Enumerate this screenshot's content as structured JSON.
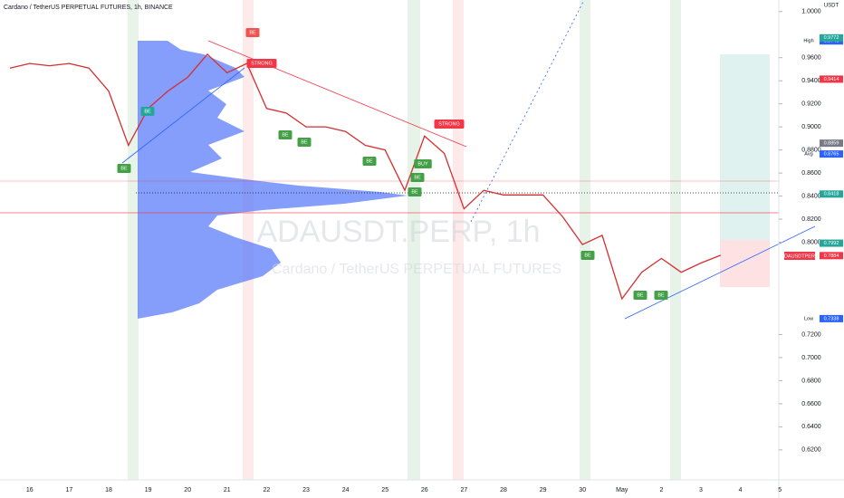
{
  "chart_data": {
    "type": "line",
    "title": "Cardano / TetherUS PERPETUAL FUTURES, 1h, BINANCE",
    "watermark": "ADAUSDT.PERP, 1h",
    "watermark_subtitle": "Cardano / TetherUS PERPETUAL FUTURES",
    "currency": "USDT",
    "symbol": "ADAUSDTPERP",
    "categories": [
      null,
      "16",
      null,
      "17",
      null,
      "18",
      null,
      "19",
      null,
      "20",
      null,
      "21",
      null,
      "22",
      null,
      "23",
      null,
      "24",
      null,
      "25",
      null,
      "26",
      null,
      "27",
      null,
      "28",
      null,
      "29",
      null,
      "30",
      null,
      "May",
      null,
      "2",
      null,
      "3",
      null,
      "4",
      null,
      "5"
    ],
    "series": [
      {
        "name": "ADAUSDT.PERP",
        "color": "#d32f2f",
        "values": [
          0.951,
          0.955,
          0.953,
          0.955,
          0.951,
          0.931,
          0.884,
          0.916,
          0.931,
          0.943,
          0.963,
          0.947,
          0.955,
          0.916,
          0.912,
          0.9,
          0.9,
          0.896,
          0.884,
          0.88,
          0.845,
          0.892,
          0.877,
          0.829,
          0.845,
          0.841,
          0.841,
          0.841,
          0.822,
          0.798,
          0.806,
          0.751,
          0.774,
          0.786,
          0.774,
          0.782,
          0.7887,
          null,
          null,
          null
        ]
      }
    ],
    "ylim": [
      0.594,
      1.01
    ],
    "yticks": [
      {
        "value": 0.62,
        "label": "0.6200"
      },
      {
        "value": 0.64,
        "label": "0.6400"
      },
      {
        "value": 0.66,
        "label": "0.6600"
      },
      {
        "value": 0.68,
        "label": "0.6800"
      },
      {
        "value": 0.7,
        "label": "0.7000"
      },
      {
        "value": 0.72,
        "label": "0.7200"
      },
      {
        "value": 0.8,
        "label": "0.8000"
      },
      {
        "value": 0.82,
        "label": "0.8200"
      },
      {
        "value": 0.84,
        "label": "0.8400"
      },
      {
        "value": 0.86,
        "label": "0.8600"
      },
      {
        "value": 0.88,
        "label": "0.8800"
      },
      {
        "value": 0.9,
        "label": "0.9000"
      },
      {
        "value": 0.92,
        "label": "0.9200"
      },
      {
        "value": 0.94,
        "label": "0.9400"
      },
      {
        "value": 0.96,
        "label": "0.9600"
      },
      {
        "value": 1.0,
        "label": "1.0000"
      }
    ],
    "grid": false,
    "markers": [
      {
        "label": "High",
        "value": 0.9745,
        "color": "#2962ff"
      },
      {
        "label": null,
        "value": 0.9772,
        "color": "#26a69a"
      },
      {
        "label": null,
        "value": 0.9414,
        "color": "#f23645"
      },
      {
        "label": null,
        "value": 0.8859,
        "color": "#787b86"
      },
      {
        "label": "Avg",
        "value": 0.8765,
        "color": "#2962ff"
      },
      {
        "label": null,
        "value": 0.8418,
        "color": "#26a69a"
      },
      {
        "label": null,
        "value": 0.7992,
        "color": "#26a69a"
      },
      {
        "label": null,
        "value": 0.7884,
        "color": "#f23645"
      },
      {
        "label": "Low",
        "value": 0.7338,
        "color": "#2962ff"
      }
    ],
    "annotations": [
      {
        "text": "BE",
        "color": "#43a047"
      },
      {
        "text": "BE",
        "color": "#26a69a"
      },
      {
        "text": "BE",
        "color": "#ef5350"
      },
      {
        "text": "STRONG",
        "color": "#f23645"
      },
      {
        "text": "BE",
        "color": "#43a047"
      },
      {
        "text": "BE",
        "color": "#43a047"
      },
      {
        "text": "BE",
        "color": "#43a047"
      },
      {
        "text": "STRONG",
        "color": "#f23645"
      },
      {
        "text": "BUY",
        "color": "#43a047"
      },
      {
        "text": "BE",
        "color": "#43a047"
      },
      {
        "text": "BE",
        "color": "#43a047"
      },
      {
        "text": "BE",
        "color": "#43a047"
      },
      {
        "text": "BE",
        "color": "#43a047"
      },
      {
        "text": "BE",
        "color": "#43a047"
      }
    ]
  }
}
